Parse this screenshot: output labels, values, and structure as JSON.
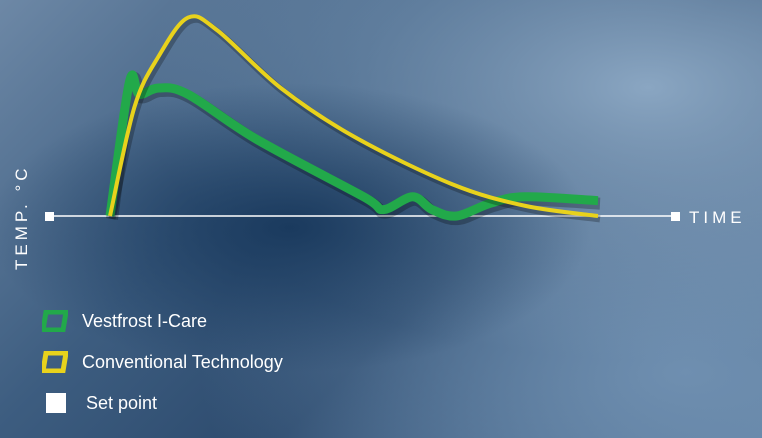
{
  "chart_data": {
    "type": "line",
    "xlabel": "TIME",
    "ylabel": "TEMP. °C",
    "set_point": 0,
    "series": [
      {
        "name": "Vestfrost I-Care",
        "color": "#22a94a",
        "values": [
          [
            0.0,
            0.0
          ],
          [
            0.04,
            1.05
          ],
          [
            0.06,
            0.95
          ],
          [
            0.1,
            1.0
          ],
          [
            0.16,
            0.95
          ],
          [
            0.3,
            0.6
          ],
          [
            0.52,
            0.15
          ],
          [
            0.56,
            0.05
          ],
          [
            0.62,
            0.15
          ],
          [
            0.66,
            0.05
          ],
          [
            0.71,
            0.0
          ],
          [
            0.78,
            0.1
          ],
          [
            0.85,
            0.15
          ],
          [
            1.0,
            0.12
          ]
        ]
      },
      {
        "name": "Conventional Technology",
        "color": "#e8d21c",
        "values": [
          [
            0.0,
            0.0
          ],
          [
            0.05,
            0.85
          ],
          [
            0.1,
            1.25
          ],
          [
            0.16,
            1.55
          ],
          [
            0.22,
            1.45
          ],
          [
            0.35,
            1.0
          ],
          [
            0.5,
            0.62
          ],
          [
            0.7,
            0.25
          ],
          [
            0.85,
            0.08
          ],
          [
            1.0,
            0.0
          ]
        ]
      }
    ]
  },
  "legend": {
    "items": [
      {
        "label": "Vestfrost I-Care",
        "color": "#22a94a"
      },
      {
        "label": "Conventional Technology",
        "color": "#e8d21c"
      },
      {
        "label": "Set point",
        "color": "#ffffff"
      }
    ]
  }
}
